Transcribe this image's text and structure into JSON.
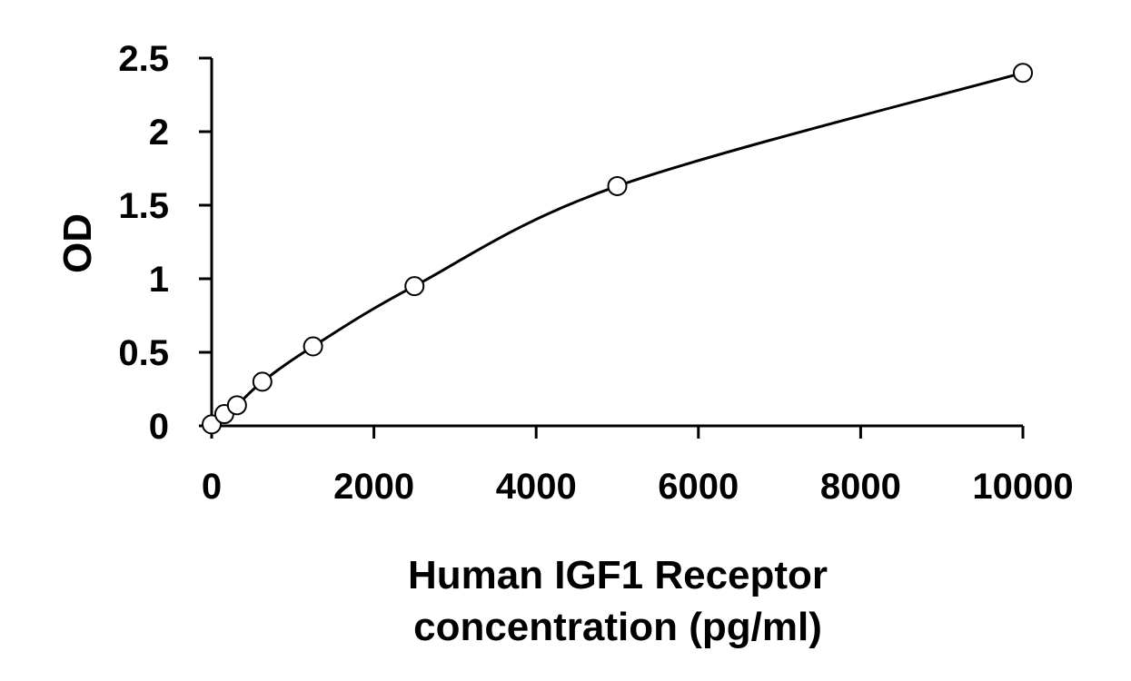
{
  "chart_data": {
    "type": "scatter",
    "title": "",
    "xlabel_lines": [
      "Human IGF1 Receptor",
      "concentration (pg/ml)"
    ],
    "ylabel": "OD",
    "xlim": [
      0,
      10000
    ],
    "ylim": [
      0,
      2.5
    ],
    "x_ticks": [
      0,
      2000,
      4000,
      6000,
      8000,
      10000
    ],
    "y_ticks": [
      0,
      0.5,
      1,
      1.5,
      2,
      2.5
    ],
    "x_tick_labels": [
      "0",
      "2000",
      "4000",
      "6000",
      "8000",
      "10000"
    ],
    "y_tick_labels": [
      "0",
      "0.5",
      "1",
      "1.5",
      "2",
      "2.5"
    ],
    "grid": false,
    "legend": "none",
    "series": [
      {
        "marker": "open-circle",
        "fit_line": "smooth",
        "x": [
          0,
          156,
          312,
          625,
          1250,
          2500,
          5000,
          10000
        ],
        "y": [
          0.01,
          0.08,
          0.14,
          0.3,
          0.54,
          0.95,
          1.63,
          2.4
        ]
      }
    ]
  }
}
